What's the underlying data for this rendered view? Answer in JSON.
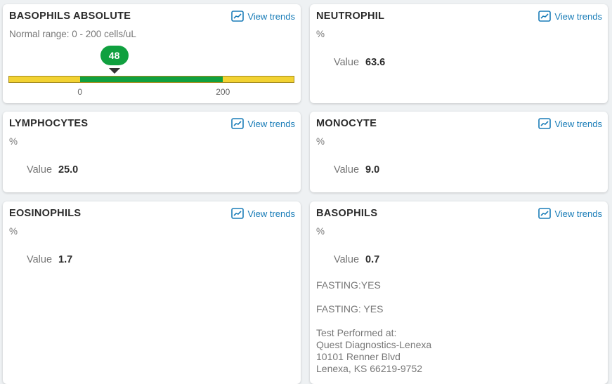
{
  "trend_label": "View trends",
  "value_label": "Value",
  "colors": {
    "normal": "#10a03f",
    "out_of_range": "#f2d232",
    "link": "#1a7db8"
  },
  "cards": [
    {
      "title": "BASOPHILS ABSOLUTE",
      "range_text": "Normal range: 0 - 200 cells/uL",
      "value": "48",
      "range_low": 0,
      "range_high": 200,
      "scale_min": -100,
      "scale_max": 300,
      "ticks": [
        "0",
        "200"
      ]
    },
    {
      "title": "NEUTROPHIL",
      "unit": "%",
      "value": "63.6"
    },
    {
      "title": "LYMPHOCYTES",
      "unit": "%",
      "value": "25.0"
    },
    {
      "title": "MONOCYTE",
      "unit": "%",
      "value": "9.0"
    },
    {
      "title": "EOSINOPHILS",
      "unit": "%",
      "value": "1.7"
    },
    {
      "title": "BASOPHILS",
      "unit": "%",
      "value": "0.7",
      "notes": [
        "FASTING:YES",
        "FASTING: YES"
      ],
      "lab": [
        "Test Performed at:",
        "Quest Diagnostics-Lenexa",
        "10101 Renner Blvd",
        "Lenexa, KS 66219-9752"
      ]
    }
  ]
}
